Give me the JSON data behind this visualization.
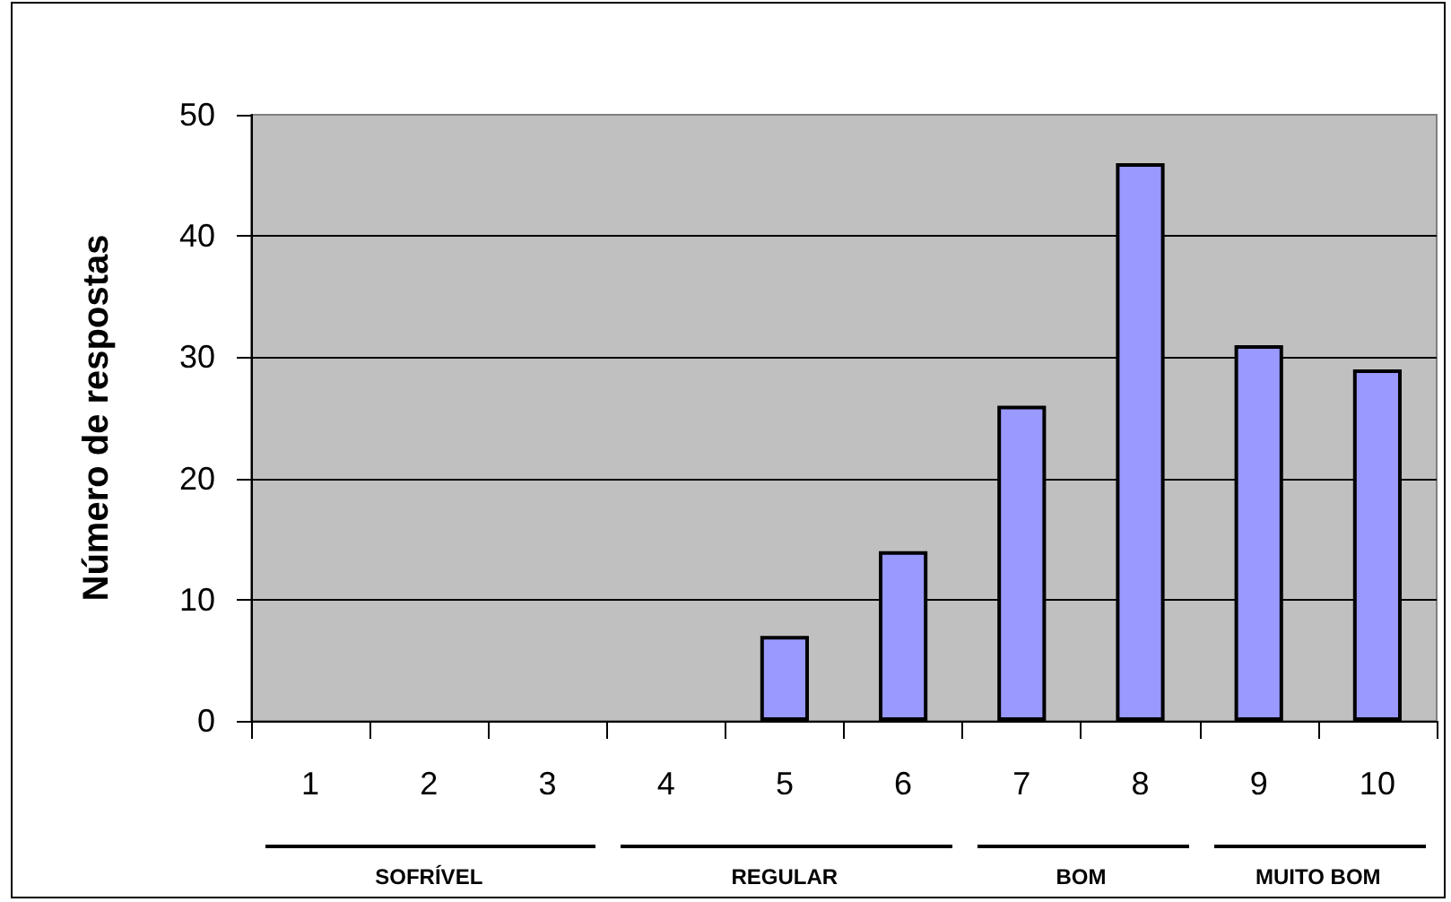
{
  "chart_data": {
    "type": "bar",
    "ylabel": "Número de respostas",
    "categories": [
      "1",
      "2",
      "3",
      "4",
      "5",
      "6",
      "7",
      "8",
      "9",
      "10"
    ],
    "values": [
      0,
      0,
      0,
      0,
      7,
      14,
      26,
      46,
      31,
      29
    ],
    "color": "#9999ff",
    "ylim": [
      0,
      50
    ],
    "yticks": [
      0,
      10,
      20,
      30,
      40,
      50
    ],
    "grid": "y",
    "annotations": [
      "SOFRÍVEL",
      "REGULAR",
      "BOM",
      "MUITO BOM"
    ]
  }
}
